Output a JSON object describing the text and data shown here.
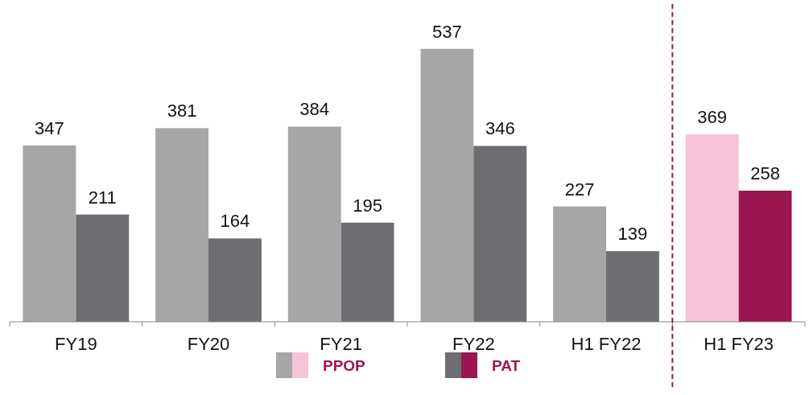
{
  "chart_data": {
    "type": "bar",
    "categories": [
      "FY19",
      "FY20",
      "FY21",
      "FY22",
      "H1 FY22",
      "H1 FY23"
    ],
    "series": [
      {
        "name": "PPOP",
        "colors": [
          "#a6a6a6",
          "#a6a6a6",
          "#a6a6a6",
          "#a6a6a6",
          "#a6a6a6",
          "#f7c3d8"
        ],
        "values": [
          347,
          381,
          384,
          537,
          227,
          369
        ]
      },
      {
        "name": "PAT",
        "colors": [
          "#6d6e71",
          "#6d6e71",
          "#6d6e71",
          "#6d6e71",
          "#6d6e71",
          "#9b1550"
        ],
        "values": [
          211,
          164,
          195,
          346,
          139,
          258
        ]
      }
    ],
    "ref_lines": [
      {
        "axis": "x",
        "value": "H1 FY23",
        "color": "#9b1550",
        "line_style": "dashed"
      }
    ],
    "data_labels": true,
    "legend": "bottom",
    "tick_labels": "x",
    "grid": false
  }
}
